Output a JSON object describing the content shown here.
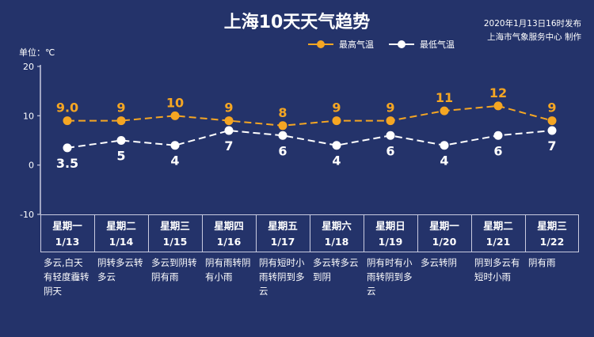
{
  "header": {
    "title": "上海10天天气趋势",
    "publish_time": "2020年1月13日16时发布",
    "publisher": "上海市气象服务中心 制作"
  },
  "chart_data": {
    "type": "line",
    "unit_label": "单位：℃",
    "ylim": [
      -10,
      20
    ],
    "yticks": [
      -10,
      0,
      10,
      20
    ],
    "grid": false,
    "legend_position": "top-right",
    "series": [
      {
        "name": "最高气温",
        "color": "#f5a623",
        "values": [
          9.0,
          9,
          10,
          9,
          8,
          9,
          9,
          11,
          12,
          9
        ],
        "labels": [
          "9.0",
          "9",
          "10",
          "9",
          "8",
          "9",
          "9",
          "11",
          "12",
          "9"
        ]
      },
      {
        "name": "最低气温",
        "color": "#ffffff",
        "values": [
          3.5,
          5,
          4,
          7,
          6,
          4,
          6,
          4,
          6,
          7
        ],
        "labels": [
          "3.5",
          "5",
          "4",
          "7",
          "6",
          "4",
          "6",
          "4",
          "6",
          "7"
        ]
      }
    ],
    "days": [
      {
        "weekday": "星期一",
        "date": "1/13",
        "weather": "多云,白天有轻度霾转阴天"
      },
      {
        "weekday": "星期二",
        "date": "1/14",
        "weather": "阴转多云转多云"
      },
      {
        "weekday": "星期三",
        "date": "1/15",
        "weather": "多云到阴转阴有雨"
      },
      {
        "weekday": "星期四",
        "date": "1/16",
        "weather": "阴有雨转阴有小雨"
      },
      {
        "weekday": "星期五",
        "date": "1/17",
        "weather": "阴有短时小雨转阴到多云"
      },
      {
        "weekday": "星期六",
        "date": "1/18",
        "weather": "多云转多云到阴"
      },
      {
        "weekday": "星期日",
        "date": "1/19",
        "weather": "阴有时有小雨转阴到多云"
      },
      {
        "weekday": "星期一",
        "date": "1/20",
        "weather": "多云转阴"
      },
      {
        "weekday": "星期二",
        "date": "1/21",
        "weather": "阴到多云有短时小雨"
      },
      {
        "weekday": "星期三",
        "date": "1/22",
        "weather": "阴有雨"
      }
    ]
  }
}
